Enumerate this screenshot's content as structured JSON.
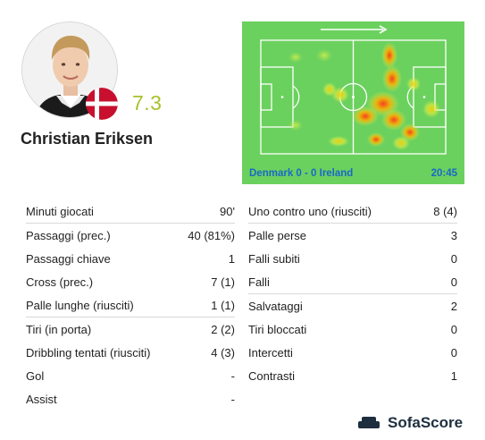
{
  "player": {
    "name": "Christian Eriksen",
    "rating": "7.3",
    "country": "Denmark",
    "flag_colors": {
      "red": "#c8102e",
      "white": "#ffffff"
    }
  },
  "heatmap": {
    "match": "Denmark 0 - 0 Ireland",
    "time": "20:45",
    "direction_icon": "arrow-right-icon",
    "pitch_color": "#6bd15e"
  },
  "stats_left": [
    {
      "label": "Minuti giocati",
      "value": "90'"
    },
    {
      "label": "Passaggi (prec.)",
      "value": "40 (81%)"
    },
    {
      "label": "Passaggi chiave",
      "value": "1"
    },
    {
      "label": "Cross (prec.)",
      "value": "7 (1)"
    },
    {
      "label": "Palle lunghe (riusciti)",
      "value": "1 (1)"
    },
    {
      "label": "Tiri (in porta)",
      "value": "2 (2)"
    },
    {
      "label": "Dribbling tentati (riusciti)",
      "value": "4 (3)"
    },
    {
      "label": "Gol",
      "value": "-"
    },
    {
      "label": "Assist",
      "value": "-"
    }
  ],
  "stats_right": [
    {
      "label": "Uno contro uno (riusciti)",
      "value": "8 (4)"
    },
    {
      "label": "Palle perse",
      "value": "3"
    },
    {
      "label": "Falli subiti",
      "value": "0"
    },
    {
      "label": "Falli",
      "value": "0"
    },
    {
      "label": "Salvataggi",
      "value": "2"
    },
    {
      "label": "Tiri bloccati",
      "value": "0"
    },
    {
      "label": "Intercetti",
      "value": "0"
    },
    {
      "label": "Contrasti",
      "value": "1"
    }
  ],
  "brand": {
    "name": "SofaScore",
    "icon": "sofa-icon",
    "color": "#1d2e3f"
  }
}
